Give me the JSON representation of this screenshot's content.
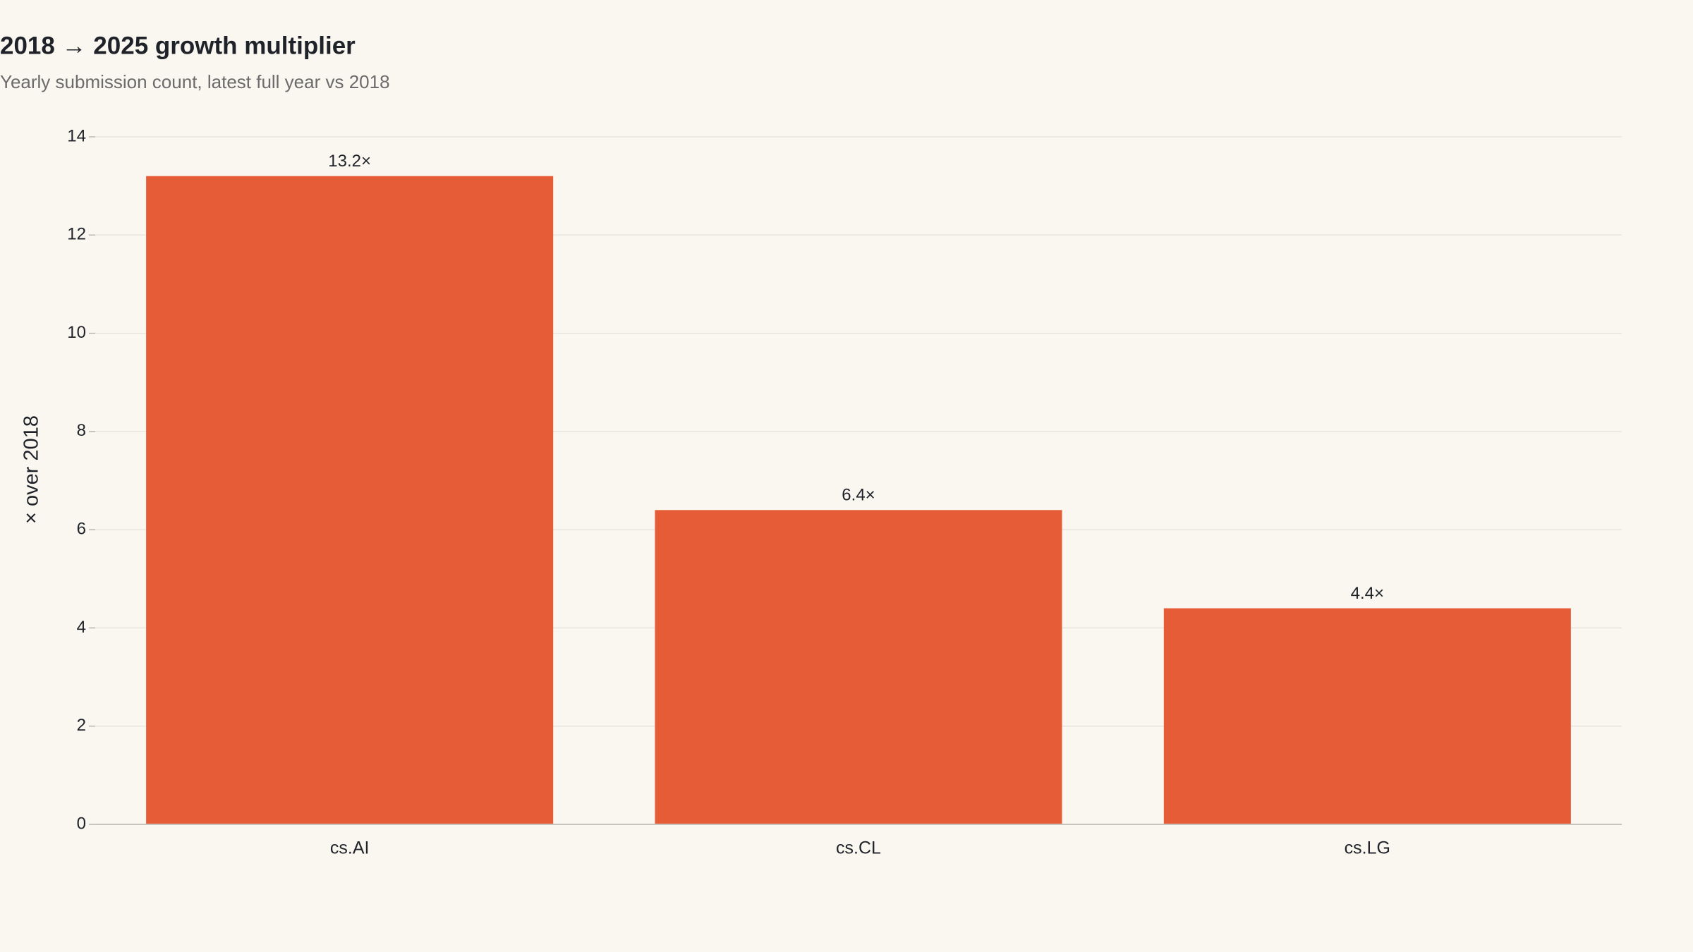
{
  "chart_data": {
    "type": "bar",
    "title": "2018 → 2025 growth multiplier",
    "subtitle": "Yearly submission count, latest full year vs 2018",
    "ylabel": "× over 2018",
    "categories": [
      "cs.AI",
      "cs.CL",
      "cs.LG"
    ],
    "values": [
      13.2,
      6.4,
      4.4
    ],
    "value_labels": [
      "13.2×",
      "6.4×",
      "4.4×"
    ],
    "color": "#e55c36",
    "ylim": [
      0,
      14
    ],
    "yticks": [
      0,
      2,
      4,
      6,
      8,
      10,
      12,
      14
    ],
    "grid": true
  }
}
